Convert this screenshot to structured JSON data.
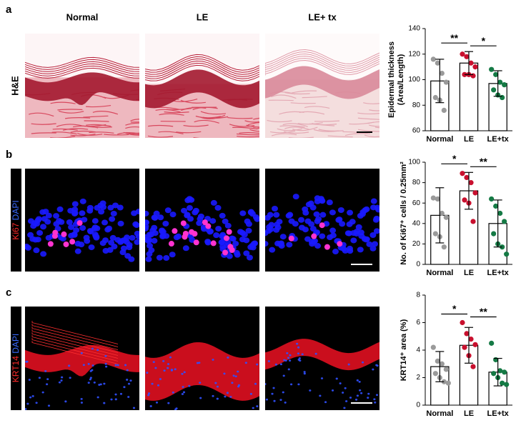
{
  "panel_letters": [
    "a",
    "b",
    "c"
  ],
  "column_labels": [
    "Normal",
    "LE",
    "LE+ tx"
  ],
  "row_labels": [
    "H&E",
    [
      "Ki67",
      "DAPI"
    ],
    [
      "KRT14",
      "DAPI"
    ]
  ],
  "chart_data": [
    {
      "type": "bar",
      "ylabel_lines": [
        "Epidermal thickness",
        "(Area/Length)"
      ],
      "categories": [
        "Normal",
        "LE",
        "LE+tx"
      ],
      "colors": [
        "#9a9a9a",
        "#c8102e",
        "#157a45"
      ],
      "values": [
        99,
        113,
        97
      ],
      "errors": [
        17,
        9,
        10
      ],
      "points": [
        [
          116,
          113,
          105,
          98,
          86,
          84,
          76
        ],
        [
          120,
          118,
          113,
          110,
          104,
          104,
          103
        ],
        [
          108,
          104,
          98,
          96,
          92,
          88,
          86
        ]
      ],
      "ylim": [
        60,
        140
      ],
      "yticks": [
        60,
        80,
        100,
        120,
        140
      ],
      "annotations": [
        {
          "text": "**",
          "groups": [
            0,
            1
          ]
        },
        {
          "text": "*",
          "groups": [
            1,
            2
          ]
        }
      ]
    },
    {
      "type": "bar",
      "ylabel_lines": [
        "No. of Ki67⁺ cells / 0.25mm²"
      ],
      "categories": [
        "Normal",
        "LE",
        "LE+tx"
      ],
      "colors": [
        "#9a9a9a",
        "#c8102e",
        "#157a45"
      ],
      "values": [
        48,
        72,
        40
      ],
      "errors": [
        27,
        18,
        23
      ],
      "points": [
        [
          65,
          64,
          50,
          46,
          30,
          27,
          17
        ],
        [
          89,
          85,
          80,
          70,
          63,
          60,
          42
        ],
        [
          64,
          57,
          50,
          42,
          30,
          20,
          17,
          10
        ]
      ],
      "ylim": [
        0,
        100
      ],
      "yticks": [
        0,
        20,
        40,
        60,
        80,
        100
      ],
      "annotations": [
        {
          "text": "*",
          "groups": [
            0,
            1
          ]
        },
        {
          "text": "**",
          "groups": [
            1,
            2
          ]
        }
      ]
    },
    {
      "type": "bar",
      "ylabel_lines": [
        "KRT14⁺ area (%)"
      ],
      "categories": [
        "Normal",
        "LE",
        "LE+tx"
      ],
      "colors": [
        "#9a9a9a",
        "#c8102e",
        "#157a45"
      ],
      "values": [
        2.8,
        4.35,
        2.4
      ],
      "errors": [
        1.1,
        1.3,
        1.0
      ],
      "points": [
        [
          4.2,
          3.2,
          3.0,
          2.6,
          2.3,
          2.0,
          1.7,
          1.6
        ],
        [
          6.0,
          5.2,
          4.8,
          4.4,
          4.2,
          3.6,
          2.8
        ],
        [
          4.5,
          3.3,
          2.5,
          2.4,
          2.3,
          2.0,
          1.6,
          1.5
        ]
      ],
      "ylim": [
        0,
        8
      ],
      "yticks": [
        0,
        2,
        4,
        6,
        8
      ],
      "annotations": [
        {
          "text": "*",
          "groups": [
            0,
            1
          ]
        },
        {
          "text": "**",
          "groups": [
            1,
            2
          ]
        }
      ]
    }
  ]
}
